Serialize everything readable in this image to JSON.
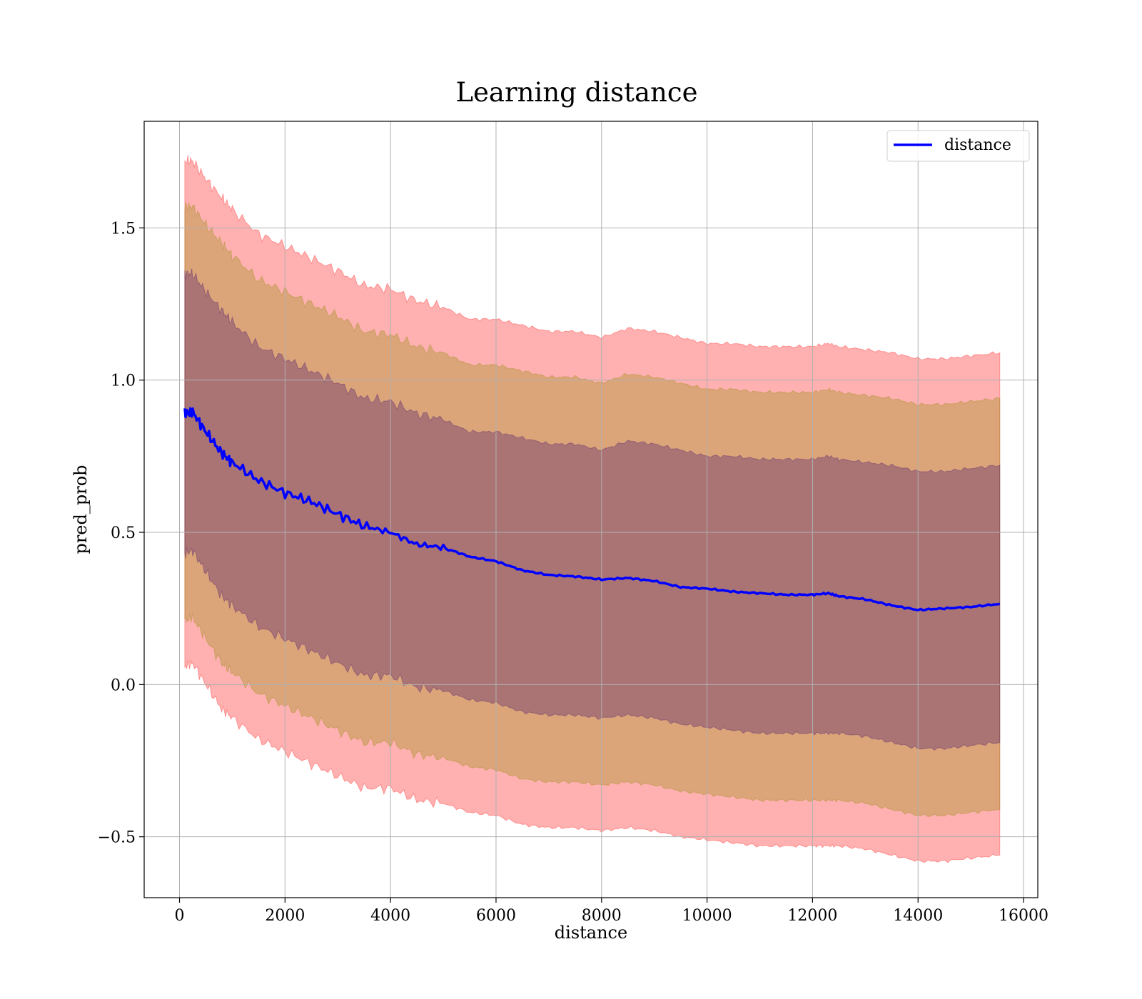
{
  "chart_data": {
    "type": "line",
    "title": "Learning distance",
    "xlabel": "distance",
    "ylabel": "pred_prob",
    "xlim": [
      -670,
      16270
    ],
    "ylim": [
      -0.7,
      1.85
    ],
    "xticks": [
      0,
      2000,
      4000,
      6000,
      8000,
      10000,
      12000,
      14000,
      16000
    ],
    "xtick_labels": [
      "0",
      "2000",
      "4000",
      "6000",
      "8000",
      "10000",
      "12000",
      "14000",
      "16000"
    ],
    "yticks": [
      -0.5,
      0.0,
      0.5,
      1.0,
      1.5
    ],
    "ytick_labels": [
      "−0.5",
      "0.0",
      "0.5",
      "1.0",
      "1.5"
    ],
    "grid": true,
    "legend": {
      "location": "upper right",
      "entries": [
        "distance"
      ]
    },
    "series": [
      {
        "name": "distance",
        "color": "#0000ff",
        "x": [
          100,
          250,
          500,
          800,
          1000,
          1500,
          2000,
          2500,
          3000,
          3500,
          4000,
          4500,
          5000,
          5500,
          6000,
          6500,
          7000,
          7500,
          8000,
          8500,
          9000,
          9500,
          10000,
          10500,
          11000,
          11500,
          12000,
          12300,
          12500,
          13000,
          13500,
          14000,
          14500,
          15000,
          15550
        ],
        "y": [
          0.89,
          0.895,
          0.83,
          0.76,
          0.73,
          0.67,
          0.63,
          0.6,
          0.56,
          0.52,
          0.5,
          0.46,
          0.45,
          0.42,
          0.405,
          0.375,
          0.36,
          0.355,
          0.345,
          0.35,
          0.34,
          0.32,
          0.315,
          0.305,
          0.3,
          0.295,
          0.295,
          0.3,
          0.29,
          0.28,
          0.26,
          0.245,
          0.25,
          0.255,
          0.265
        ]
      }
    ],
    "bands": [
      {
        "color": "#ff0000",
        "opacity": 0.31,
        "x": [
          100,
          250,
          500,
          800,
          1000,
          1500,
          2000,
          2500,
          3000,
          3500,
          4000,
          4500,
          5000,
          5500,
          6000,
          6500,
          7000,
          7500,
          8000,
          8500,
          9000,
          9500,
          10000,
          10500,
          11000,
          11500,
          12000,
          12300,
          12500,
          13000,
          13500,
          14000,
          14500,
          15000,
          15550
        ],
        "upper": [
          1.72,
          1.72,
          1.66,
          1.6,
          1.56,
          1.48,
          1.44,
          1.4,
          1.36,
          1.31,
          1.3,
          1.26,
          1.24,
          1.2,
          1.2,
          1.18,
          1.16,
          1.16,
          1.14,
          1.17,
          1.16,
          1.14,
          1.12,
          1.12,
          1.11,
          1.11,
          1.11,
          1.12,
          1.11,
          1.1,
          1.09,
          1.07,
          1.07,
          1.08,
          1.09
        ],
        "lower": [
          0.06,
          0.07,
          0.0,
          -0.08,
          -0.11,
          -0.18,
          -0.22,
          -0.26,
          -0.3,
          -0.34,
          -0.34,
          -0.38,
          -0.39,
          -0.42,
          -0.43,
          -0.46,
          -0.47,
          -0.47,
          -0.48,
          -0.47,
          -0.48,
          -0.5,
          -0.51,
          -0.52,
          -0.53,
          -0.53,
          -0.53,
          -0.53,
          -0.53,
          -0.54,
          -0.56,
          -0.58,
          -0.58,
          -0.57,
          -0.56
        ]
      },
      {
        "color": "#8b8b00",
        "opacity": 0.31,
        "x": [
          100,
          250,
          500,
          800,
          1000,
          1500,
          2000,
          2500,
          3000,
          3500,
          4000,
          4500,
          5000,
          5500,
          6000,
          6500,
          7000,
          7500,
          8000,
          8500,
          9000,
          9500,
          10000,
          10500,
          11000,
          11500,
          12000,
          12300,
          12500,
          13000,
          13500,
          14000,
          14500,
          15000,
          15550
        ],
        "upper": [
          1.57,
          1.57,
          1.51,
          1.45,
          1.41,
          1.33,
          1.29,
          1.25,
          1.21,
          1.16,
          1.15,
          1.11,
          1.09,
          1.05,
          1.05,
          1.03,
          1.01,
          1.01,
          0.99,
          1.02,
          1.01,
          0.99,
          0.97,
          0.97,
          0.96,
          0.96,
          0.96,
          0.97,
          0.96,
          0.95,
          0.94,
          0.92,
          0.92,
          0.93,
          0.94
        ],
        "lower": [
          0.21,
          0.22,
          0.15,
          0.07,
          0.04,
          -0.03,
          -0.07,
          -0.11,
          -0.15,
          -0.19,
          -0.19,
          -0.23,
          -0.24,
          -0.27,
          -0.28,
          -0.31,
          -0.32,
          -0.32,
          -0.33,
          -0.32,
          -0.33,
          -0.35,
          -0.36,
          -0.37,
          -0.38,
          -0.38,
          -0.38,
          -0.38,
          -0.38,
          -0.39,
          -0.41,
          -0.43,
          -0.43,
          -0.42,
          -0.41
        ]
      },
      {
        "color": "#3c0a6e",
        "opacity": 0.31,
        "x": [
          100,
          250,
          500,
          800,
          1000,
          1500,
          2000,
          2500,
          3000,
          3500,
          4000,
          4500,
          5000,
          5500,
          6000,
          6500,
          7000,
          7500,
          8000,
          8500,
          9000,
          9500,
          10000,
          10500,
          11000,
          11500,
          12000,
          12300,
          12500,
          13000,
          13500,
          14000,
          14500,
          15000,
          15550
        ],
        "upper": [
          1.35,
          1.35,
          1.29,
          1.23,
          1.19,
          1.11,
          1.07,
          1.03,
          0.99,
          0.94,
          0.93,
          0.89,
          0.87,
          0.83,
          0.83,
          0.81,
          0.79,
          0.79,
          0.77,
          0.8,
          0.79,
          0.77,
          0.75,
          0.75,
          0.74,
          0.74,
          0.74,
          0.75,
          0.74,
          0.73,
          0.72,
          0.7,
          0.7,
          0.71,
          0.72
        ],
        "lower": [
          0.43,
          0.44,
          0.37,
          0.29,
          0.26,
          0.19,
          0.15,
          0.11,
          0.07,
          0.03,
          0.03,
          -0.01,
          -0.02,
          -0.05,
          -0.06,
          -0.09,
          -0.1,
          -0.1,
          -0.11,
          -0.1,
          -0.11,
          -0.13,
          -0.14,
          -0.15,
          -0.16,
          -0.16,
          -0.16,
          -0.16,
          -0.16,
          -0.17,
          -0.19,
          -0.21,
          -0.21,
          -0.2,
          -0.19
        ]
      }
    ]
  }
}
